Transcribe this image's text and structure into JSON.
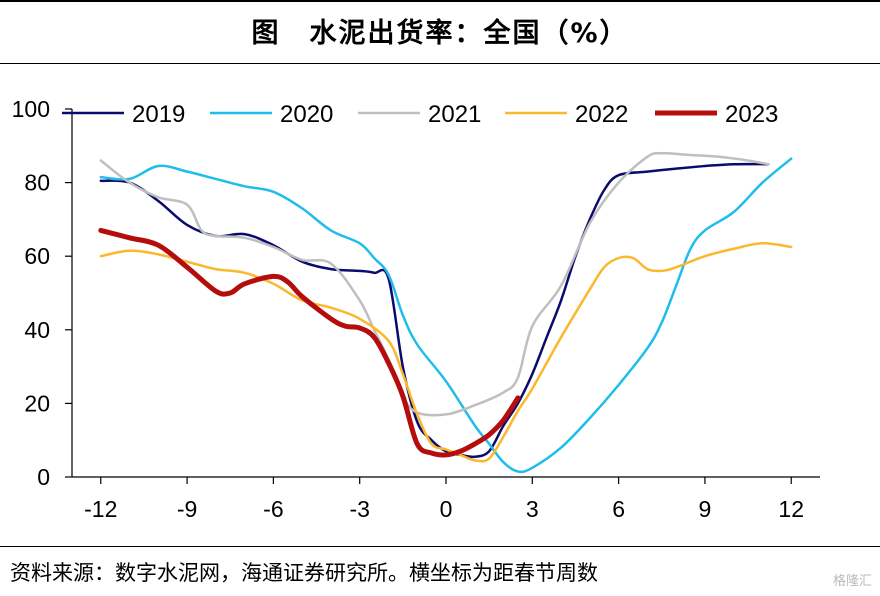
{
  "header": {
    "title": "图　水泥出货率：全国（%）"
  },
  "footer": {
    "source": "资料来源：数字水泥网，海通证券研究所。横坐标为距春节周数",
    "watermark": "格隆汇"
  },
  "chart_data": {
    "type": "line",
    "title": "图　水泥出货率：全国（%）",
    "xlabel": "",
    "ylabel": "",
    "xlim": [
      -13,
      13
    ],
    "ylim": [
      0,
      100
    ],
    "x_ticks": [
      -12,
      -9,
      -6,
      -3,
      0,
      3,
      6,
      9,
      12
    ],
    "y_ticks": [
      0,
      20,
      40,
      60,
      80,
      100
    ],
    "x_tick_labels": [
      "-12",
      "-9",
      "-6",
      "-3",
      "0",
      "3",
      "6",
      "9",
      "12"
    ],
    "y_tick_labels": [
      "0",
      "20",
      "40",
      "60",
      "80",
      "100"
    ],
    "grid": false,
    "legend": "top",
    "series": [
      {
        "name": "2019",
        "color": "#0b0b6e",
        "width": 2.5,
        "points": [
          [
            -12,
            80.5
          ],
          [
            -11,
            80
          ],
          [
            -10,
            75
          ],
          [
            -9,
            68.5
          ],
          [
            -8,
            65.5
          ],
          [
            -7,
            66
          ],
          [
            -6,
            63
          ],
          [
            -5,
            58.5
          ],
          [
            -4,
            56.5
          ],
          [
            -3,
            56
          ],
          [
            -2.5,
            55.5
          ],
          [
            -2,
            54
          ],
          [
            -1.5,
            30
          ],
          [
            -1,
            15
          ],
          [
            -0.5,
            10
          ],
          [
            0,
            7
          ],
          [
            0.5,
            6
          ],
          [
            1,
            5.5
          ],
          [
            1.5,
            7
          ],
          [
            2,
            14
          ],
          [
            2.5,
            20
          ],
          [
            3,
            28
          ],
          [
            3.5,
            38
          ],
          [
            4,
            48
          ],
          [
            4.5,
            60
          ],
          [
            5,
            70
          ],
          [
            5.5,
            78
          ],
          [
            6,
            82
          ],
          [
            7,
            83
          ],
          [
            8,
            83.8
          ],
          [
            9,
            84.5
          ],
          [
            10,
            85
          ],
          [
            11.2,
            85
          ]
        ]
      },
      {
        "name": "2020",
        "color": "#1fbdeb",
        "width": 2.5,
        "points": [
          [
            -12,
            81.5
          ],
          [
            -11,
            81
          ],
          [
            -10,
            84.5
          ],
          [
            -9,
            83
          ],
          [
            -8,
            81
          ],
          [
            -7,
            79
          ],
          [
            -6,
            77.5
          ],
          [
            -5,
            73
          ],
          [
            -4,
            67
          ],
          [
            -3,
            63.5
          ],
          [
            -2.5,
            59.5
          ],
          [
            -2,
            55
          ],
          [
            -1.5,
            44
          ],
          [
            -1,
            36
          ],
          [
            0,
            26
          ],
          [
            1,
            14
          ],
          [
            1.5,
            9
          ],
          [
            2,
            4
          ],
          [
            2.5,
            1.5
          ],
          [
            3,
            2.5
          ],
          [
            4,
            8
          ],
          [
            5,
            16
          ],
          [
            6,
            25
          ],
          [
            7,
            35
          ],
          [
            7.5,
            42
          ],
          [
            8,
            52
          ],
          [
            8.5,
            62
          ],
          [
            9,
            67
          ],
          [
            10,
            72
          ],
          [
            11,
            80
          ],
          [
            12,
            86.5
          ]
        ]
      },
      {
        "name": "2021",
        "color": "#bfbfbf",
        "width": 2.5,
        "points": [
          [
            -12,
            86
          ],
          [
            -11,
            80
          ],
          [
            -10,
            76
          ],
          [
            -9,
            74
          ],
          [
            -8.5,
            67
          ],
          [
            -8,
            65.5
          ],
          [
            -7,
            65
          ],
          [
            -6,
            62.5
          ],
          [
            -5,
            59
          ],
          [
            -4,
            58
          ],
          [
            -3,
            48
          ],
          [
            -2.5,
            40
          ],
          [
            -2,
            32
          ],
          [
            -1.5,
            22
          ],
          [
            -1,
            17.5
          ],
          [
            0,
            17
          ],
          [
            1,
            19.5
          ],
          [
            2,
            23
          ],
          [
            2.5,
            27
          ],
          [
            3,
            41
          ],
          [
            4,
            52
          ],
          [
            5,
            69
          ],
          [
            6,
            80
          ],
          [
            7,
            87
          ],
          [
            7.5,
            88
          ],
          [
            8.5,
            87.5
          ],
          [
            9.5,
            87
          ],
          [
            10.5,
            86
          ],
          [
            11.2,
            85
          ]
        ]
      },
      {
        "name": "2022",
        "color": "#fab82a",
        "width": 2.5,
        "points": [
          [
            -12,
            60
          ],
          [
            -11,
            61.5
          ],
          [
            -10,
            60.5
          ],
          [
            -9,
            58.5
          ],
          [
            -8,
            56.5
          ],
          [
            -7,
            55.5
          ],
          [
            -6,
            52.5
          ],
          [
            -5,
            48
          ],
          [
            -4,
            46
          ],
          [
            -3,
            43
          ],
          [
            -2,
            37
          ],
          [
            -1.5,
            28
          ],
          [
            -1,
            17
          ],
          [
            -0.5,
            9
          ],
          [
            0,
            7.5
          ],
          [
            0.5,
            6
          ],
          [
            1,
            4.5
          ],
          [
            1.5,
            5
          ],
          [
            2,
            11
          ],
          [
            2.5,
            18
          ],
          [
            3,
            24
          ],
          [
            4,
            38
          ],
          [
            5,
            51
          ],
          [
            5.5,
            57
          ],
          [
            6,
            59.5
          ],
          [
            6.5,
            59.5
          ],
          [
            7,
            56.5
          ],
          [
            7.5,
            56
          ],
          [
            8,
            57
          ],
          [
            9,
            60
          ],
          [
            10,
            62
          ],
          [
            11,
            63.5
          ],
          [
            12,
            62.5
          ]
        ]
      },
      {
        "name": "2023",
        "color": "#b50d0d",
        "width": 5,
        "points": [
          [
            -12,
            67
          ],
          [
            -11,
            65
          ],
          [
            -10,
            63
          ],
          [
            -9,
            57
          ],
          [
            -8,
            50.5
          ],
          [
            -7.5,
            50
          ],
          [
            -7,
            52.5
          ],
          [
            -6,
            54.5
          ],
          [
            -5.5,
            53
          ],
          [
            -5,
            49
          ],
          [
            -4,
            43
          ],
          [
            -3.5,
            41
          ],
          [
            -3,
            40.5
          ],
          [
            -2.5,
            38
          ],
          [
            -2,
            31
          ],
          [
            -1.5,
            22
          ],
          [
            -1,
            9
          ],
          [
            -0.5,
            6.5
          ],
          [
            0,
            6
          ],
          [
            0.5,
            7
          ],
          [
            1,
            9
          ],
          [
            1.5,
            11.5
          ],
          [
            2,
            15.5
          ],
          [
            2.5,
            21.5
          ]
        ]
      }
    ]
  }
}
